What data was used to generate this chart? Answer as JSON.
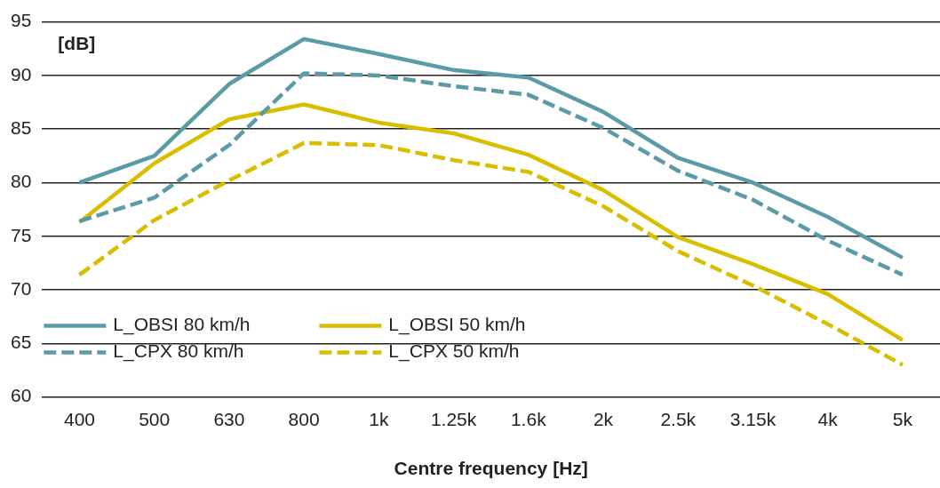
{
  "chart_data": {
    "type": "line",
    "xlabel": "Centre frequency [Hz]",
    "ylabel": "[dB]",
    "categories": [
      "400",
      "500",
      "630",
      "800",
      "1k",
      "1.25k",
      "1.6k",
      "2k",
      "2.5k",
      "3.15k",
      "4k",
      "5k"
    ],
    "series": [
      {
        "name": "L_OBSI 80 km/h",
        "color": "#5b9ba8",
        "line_style": "solid",
        "values": [
          80,
          82.5,
          89.2,
          93.4,
          92,
          90.5,
          89.8,
          86.6,
          82.3,
          80,
          76.8,
          73
        ]
      },
      {
        "name": "L_CPX 80 km/h",
        "color": "#5b9ba8",
        "line_style": "dashed",
        "values": [
          76.4,
          78.6,
          83.5,
          90.2,
          90,
          89,
          88.2,
          85.1,
          81.1,
          78.4,
          74.6,
          71.4
        ]
      },
      {
        "name": "L_OBSI 50 km/h",
        "color": "#d9be00",
        "line_style": "solid",
        "values": [
          76.3,
          81.8,
          85.9,
          87.3,
          85.6,
          84.6,
          82.6,
          79.3,
          74.9,
          72.4,
          69.6,
          65.3
        ]
      },
      {
        "name": "L_CPX 50 km/h",
        "color": "#d9be00",
        "line_style": "dashed",
        "values": [
          71.4,
          76.5,
          80.2,
          83.7,
          83.5,
          82.1,
          81,
          77.8,
          73.6,
          70.4,
          66.8,
          63
        ]
      }
    ],
    "ylim": [
      60,
      95
    ],
    "yticks": [
      60,
      65,
      70,
      75,
      80,
      85,
      90,
      95
    ],
    "grid": "y",
    "legend": "bottom left",
    "marker": "none"
  }
}
